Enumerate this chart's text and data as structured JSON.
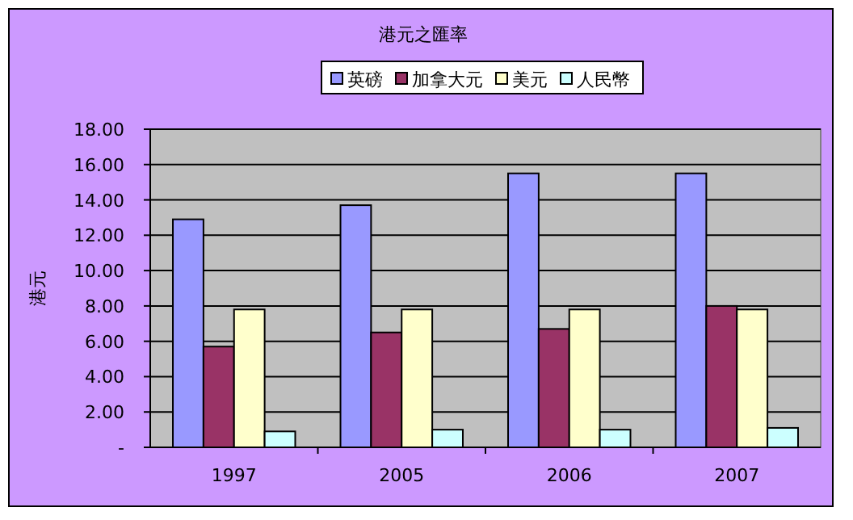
{
  "chart_data": {
    "type": "bar",
    "title": "港元之匯率",
    "ylabel": "港元",
    "categories": [
      "1997",
      "2005",
      "2006",
      "2007"
    ],
    "series": [
      {
        "name": "英磅",
        "color": "#9999ff",
        "values": [
          12.9,
          13.7,
          15.5,
          15.5
        ]
      },
      {
        "name": "加拿大元",
        "color": "#993366",
        "values": [
          5.7,
          6.5,
          6.7,
          8.0
        ]
      },
      {
        "name": "美元",
        "color": "#ffffcc",
        "values": [
          7.8,
          7.8,
          7.8,
          7.8
        ]
      },
      {
        "name": "人民幣",
        "color": "#ccffff",
        "values": [
          0.9,
          1.0,
          1.0,
          1.1
        ]
      }
    ],
    "ylim": [
      0,
      18
    ],
    "yticks": [
      {
        "value": 0,
        "label": "-"
      },
      {
        "value": 2,
        "label": "2.00"
      },
      {
        "value": 4,
        "label": "4.00"
      },
      {
        "value": 6,
        "label": "6.00"
      },
      {
        "value": 8,
        "label": "8.00"
      },
      {
        "value": 10,
        "label": "10.00"
      },
      {
        "value": 12,
        "label": "12.00"
      },
      {
        "value": 14,
        "label": "14.00"
      },
      {
        "value": 16,
        "label": "16.00"
      },
      {
        "value": 18,
        "label": "18.00"
      }
    ],
    "grid": "y",
    "legend": "top"
  }
}
